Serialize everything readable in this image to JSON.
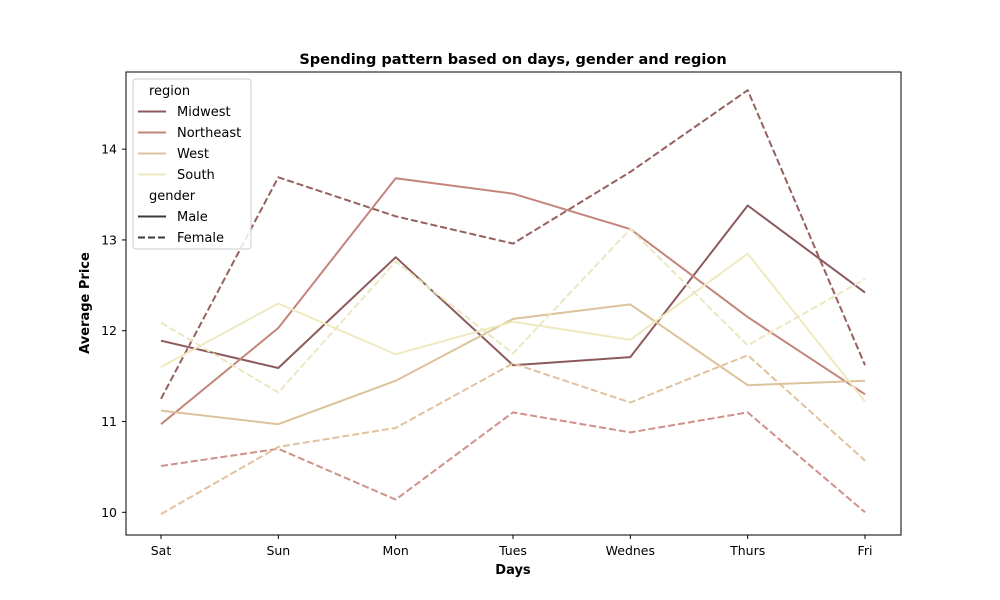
{
  "chart_data": {
    "type": "line",
    "title": "Spending pattern based on days, gender and region",
    "xlabel": "Days",
    "ylabel": "Average Price",
    "categories": [
      "Sat",
      "Sun",
      "Mon",
      "Tues",
      "Wednes",
      "Thurs",
      "Fri"
    ],
    "ylim": [
      9.75,
      14.85
    ],
    "yticks": [
      10,
      11,
      12,
      13,
      14
    ],
    "grid": false,
    "legend": {
      "placement": "top-left",
      "hue_title": "region",
      "style_title": "gender",
      "hue_entries": [
        {
          "label": "Midwest",
          "color": "#8c5a5c"
        },
        {
          "label": "Northeast",
          "color": "#c3857b"
        },
        {
          "label": "West",
          "color": "#dcc39c"
        },
        {
          "label": "South",
          "color": "#efe9bf"
        }
      ],
      "style_entries": [
        {
          "label": "Male",
          "dashed": false,
          "color": "#3a3a3a"
        },
        {
          "label": "Female",
          "dashed": true,
          "color": "#3a3a3a"
        }
      ]
    },
    "series": [
      {
        "region": "Midwest",
        "gender": "Male",
        "color": "#8c5a5c",
        "dashed": false,
        "values": [
          11.89,
          11.59,
          12.81,
          11.62,
          11.71,
          13.38,
          12.42
        ]
      },
      {
        "region": "Midwest",
        "gender": "Female",
        "color": "#96605e",
        "dashed": true,
        "values": [
          11.25,
          13.69,
          13.26,
          12.96,
          13.75,
          14.65,
          11.62
        ]
      },
      {
        "region": "Northeast",
        "gender": "Male",
        "color": "#c3857b",
        "dashed": false,
        "values": [
          10.97,
          12.03,
          13.68,
          13.51,
          13.12,
          12.15,
          11.3
        ]
      },
      {
        "region": "Northeast",
        "gender": "Female",
        "color": "#cf918a",
        "dashed": true,
        "values": [
          10.51,
          10.7,
          10.14,
          11.1,
          10.88,
          11.1,
          10.0
        ]
      },
      {
        "region": "West",
        "gender": "Male",
        "color": "#dcc39c",
        "dashed": false,
        "values": [
          11.12,
          10.97,
          11.45,
          12.13,
          12.29,
          11.4,
          11.45
        ]
      },
      {
        "region": "West",
        "gender": "Female",
        "color": "#e2c29c",
        "dashed": true,
        "values": [
          9.98,
          10.72,
          10.93,
          11.64,
          11.21,
          11.73,
          10.57
        ]
      },
      {
        "region": "South",
        "gender": "Male",
        "color": "#efe9bf",
        "dashed": false,
        "values": [
          11.6,
          12.3,
          11.74,
          12.1,
          11.9,
          12.85,
          11.22
        ]
      },
      {
        "region": "South",
        "gender": "Female",
        "color": "#ece7c0",
        "dashed": true,
        "values": [
          12.09,
          11.32,
          12.76,
          11.75,
          13.12,
          11.84,
          12.57
        ]
      }
    ]
  }
}
